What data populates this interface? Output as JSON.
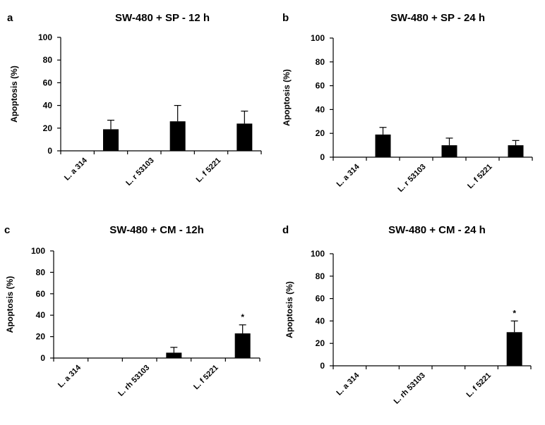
{
  "chart_data": [
    {
      "panel": "a",
      "type": "bar",
      "title": "SW-480 + SP - 12 h",
      "ylabel": "Apoptosis (%)",
      "xlabel": "",
      "ylim": [
        0,
        100
      ],
      "yticks": [
        0,
        20,
        40,
        60,
        80,
        100
      ],
      "categories": [
        "L. a 314",
        "L. r 53103",
        "L. f 5221"
      ],
      "values": [
        19,
        26,
        24
      ],
      "errors": [
        8,
        14,
        11
      ],
      "significance": [
        "",
        "",
        ""
      ],
      "grid": false,
      "legend": "none"
    },
    {
      "panel": "b",
      "type": "bar",
      "title": "SW-480 + SP - 24 h",
      "ylabel": "Apoptosis (%)",
      "xlabel": "",
      "ylim": [
        0,
        100
      ],
      "yticks": [
        0,
        20,
        40,
        60,
        80,
        100
      ],
      "categories": [
        "L. a 314",
        "L. r 53103",
        "L. f 5221"
      ],
      "values": [
        19,
        10,
        10
      ],
      "errors": [
        6,
        6,
        4
      ],
      "significance": [
        "",
        "",
        ""
      ],
      "grid": false,
      "legend": "none"
    },
    {
      "panel": "c",
      "type": "bar",
      "title": "SW-480 + CM - 12h",
      "ylabel": "Apoptosis (%)",
      "xlabel": "",
      "ylim": [
        0,
        100
      ],
      "yticks": [
        0,
        20,
        40,
        60,
        80,
        100
      ],
      "categories": [
        "L. a 314",
        "L. rh 53103",
        "L. f 5221"
      ],
      "values": [
        0,
        5,
        23
      ],
      "errors": [
        0,
        5,
        8
      ],
      "significance": [
        "",
        "",
        "*"
      ],
      "grid": false,
      "legend": "none"
    },
    {
      "panel": "d",
      "type": "bar",
      "title": "SW-480 + CM - 24 h",
      "ylabel": "Apoptosis (%)",
      "xlabel": "",
      "ylim": [
        0,
        100
      ],
      "yticks": [
        0,
        20,
        40,
        60,
        80,
        100
      ],
      "categories": [
        "L. a 314",
        "L. rh 53103",
        "L. f 5221"
      ],
      "values": [
        0,
        0,
        30
      ],
      "errors": [
        0,
        0,
        10
      ],
      "significance": [
        "",
        "",
        "*"
      ],
      "grid": false,
      "legend": "none"
    }
  ],
  "colors": {
    "bar": "#000000",
    "axis": "#000000",
    "background": "#ffffff"
  }
}
